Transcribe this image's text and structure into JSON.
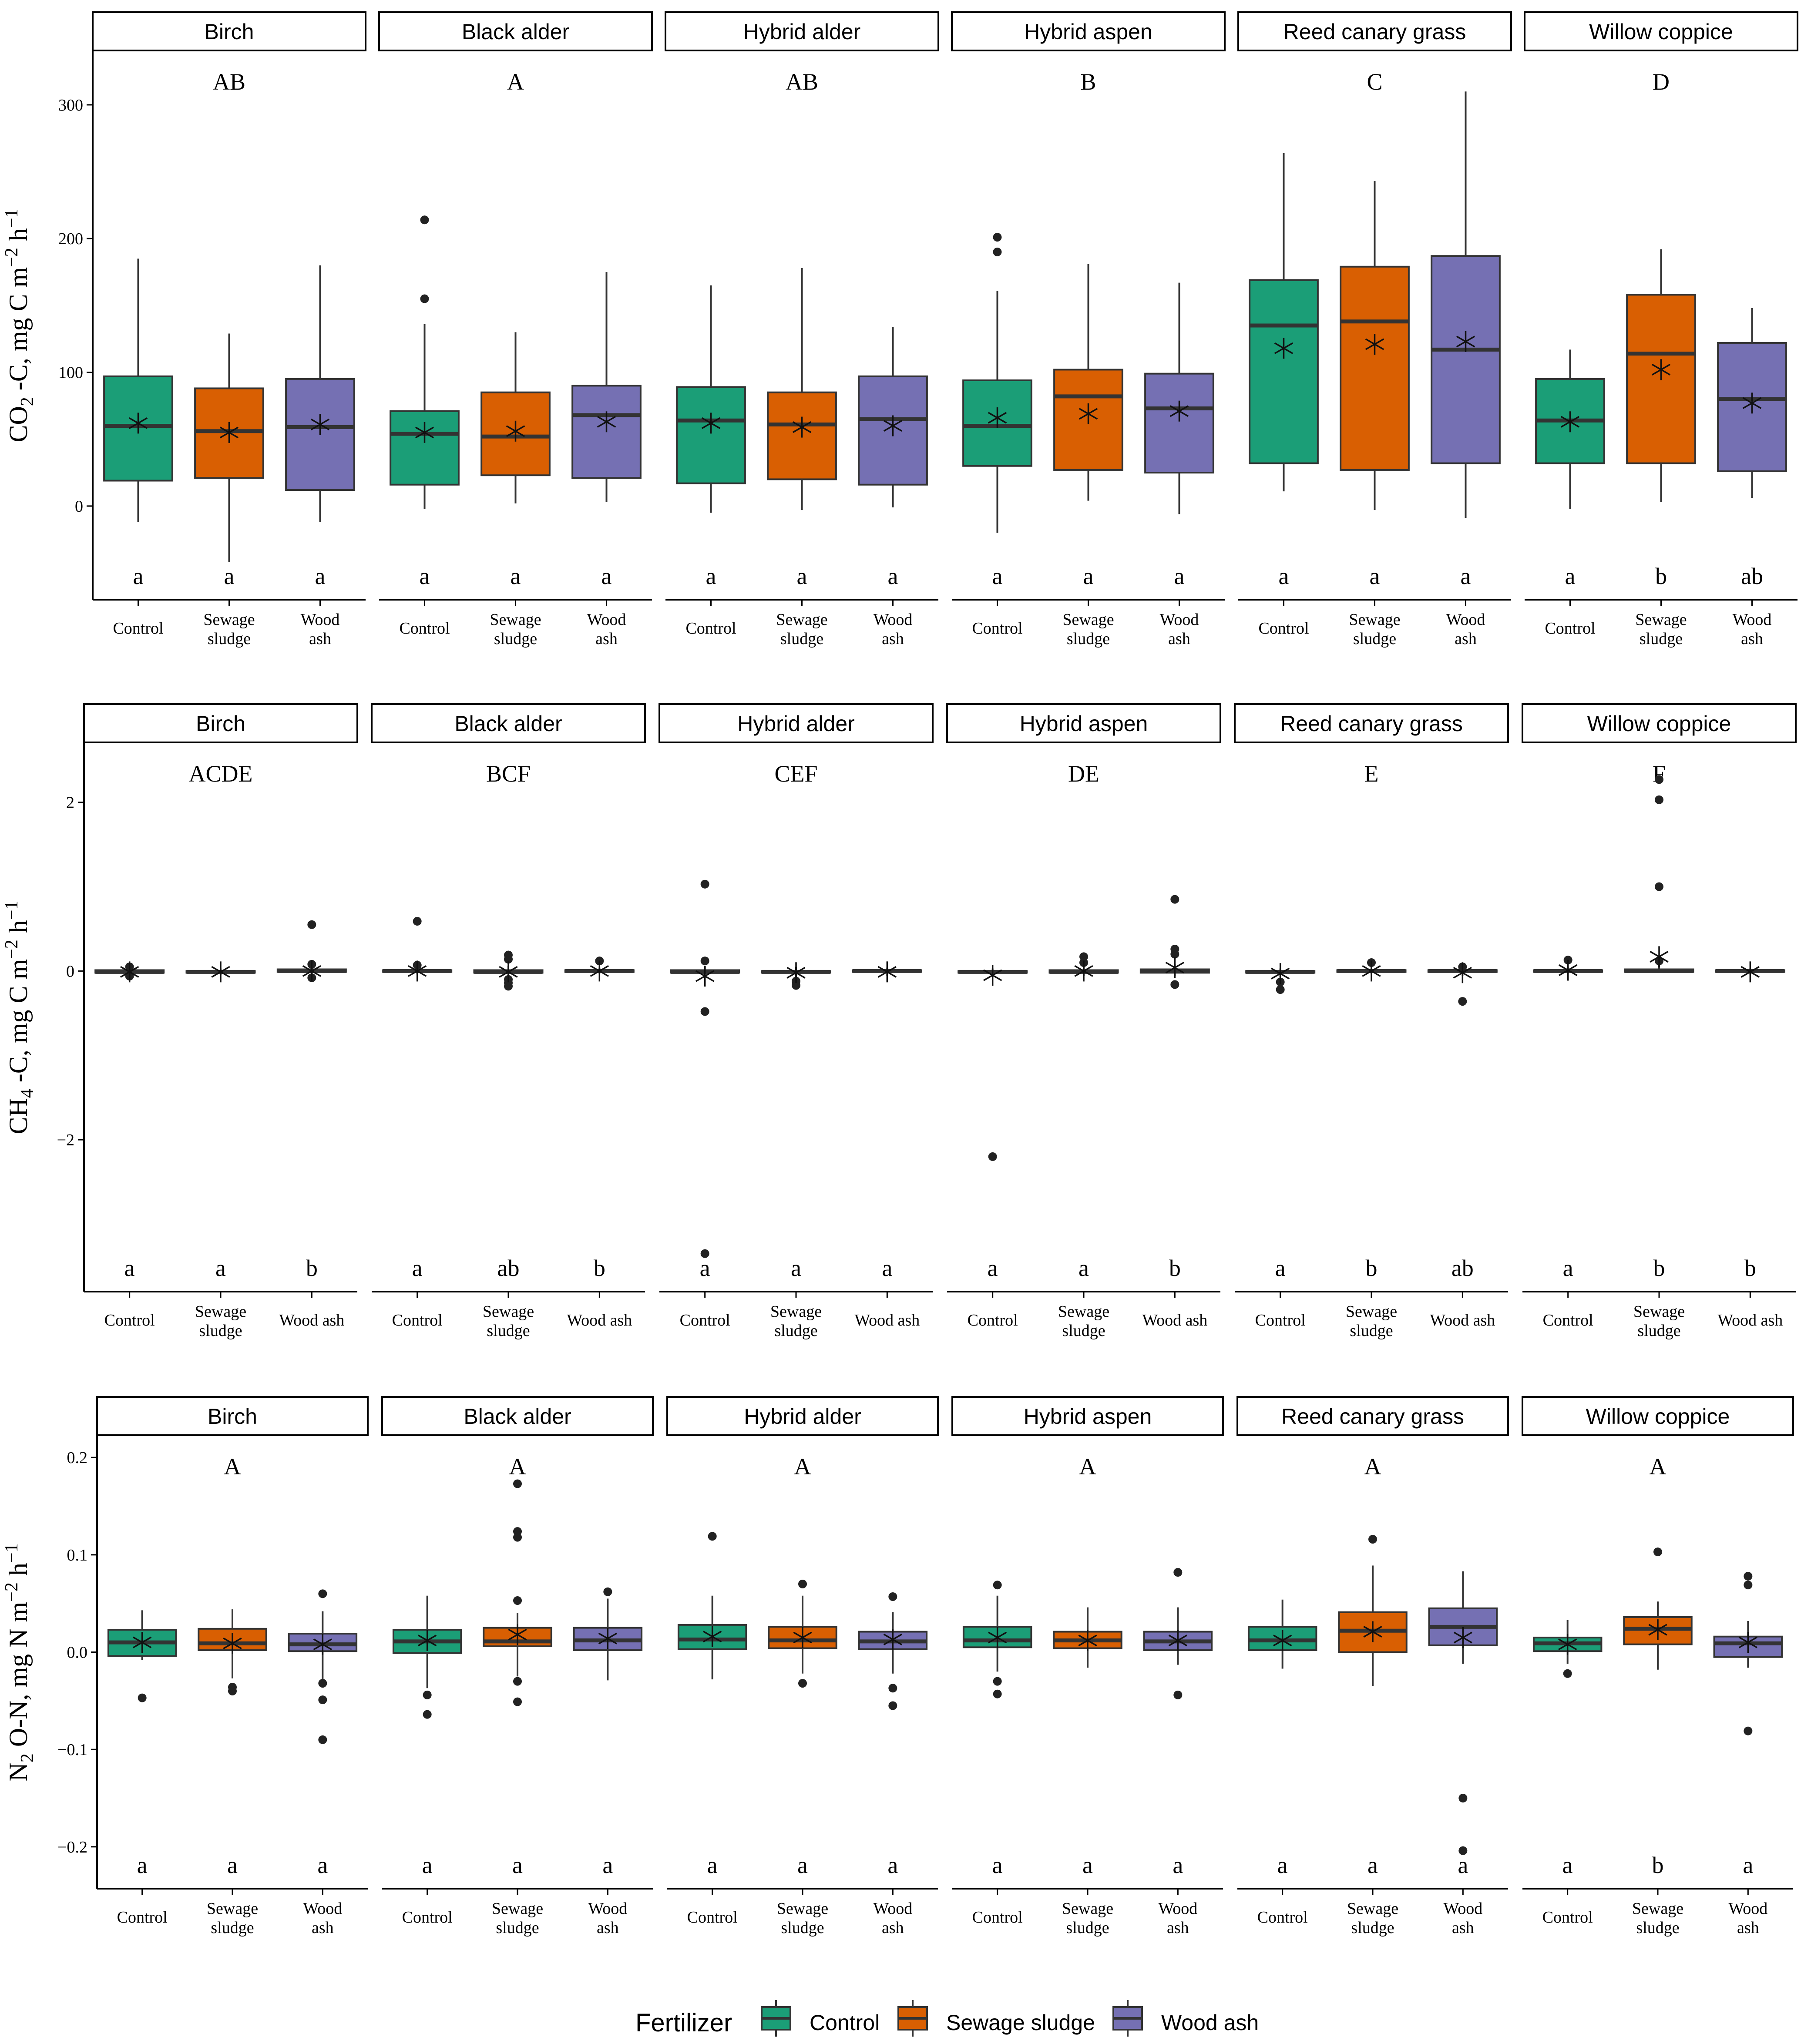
{
  "legend": {
    "title": "Fertilizer",
    "entries": [
      {
        "label": "Control",
        "color": "#1b9e77"
      },
      {
        "label": "Sewage sludge",
        "color": "#d95f02"
      },
      {
        "label": "Wood ash",
        "color": "#7570b3"
      }
    ]
  },
  "chart_data": [
    {
      "type": "box",
      "ylabel": {
        "main": "CO",
        "sub1": "2",
        "mid": " -C, mg C m",
        "sup1": "−2",
        "mid2": " h",
        "sup2": "−1"
      },
      "ylim": [
        -70,
        340
      ],
      "yticks": [
        0,
        100,
        200,
        300
      ],
      "ytick_labels": [
        "0",
        "100",
        "200",
        "300"
      ],
      "xtick_lines": [
        [
          "Control"
        ],
        [
          "Sewage",
          "sludge"
        ],
        [
          "Wood",
          "ash"
        ]
      ],
      "panels": [
        {
          "name": "Birch",
          "group": "AB",
          "letters": [
            "a",
            "a",
            "a"
          ],
          "boxes": [
            {
              "lw": -12,
              "q1": 19,
              "med": 60,
              "q3": 97,
              "uw": 185,
              "mean": 62,
              "outliers": []
            },
            {
              "lw": -42,
              "q1": 21,
              "med": 56,
              "q3": 88,
              "uw": 129,
              "mean": 55,
              "outliers": []
            },
            {
              "lw": -12,
              "q1": 12,
              "med": 59,
              "q3": 95,
              "uw": 180,
              "mean": 61,
              "outliers": []
            }
          ]
        },
        {
          "name": "Black alder",
          "group": "A",
          "letters": [
            "a",
            "a",
            "a"
          ],
          "boxes": [
            {
              "lw": -2,
              "q1": 16,
              "med": 54,
              "q3": 71,
              "uw": 136,
              "mean": 55,
              "outliers": [
                155,
                214
              ]
            },
            {
              "lw": 2,
              "q1": 23,
              "med": 52,
              "q3": 85,
              "uw": 130,
              "mean": 56,
              "outliers": []
            },
            {
              "lw": 3,
              "q1": 21,
              "med": 68,
              "q3": 90,
              "uw": 175,
              "mean": 63,
              "outliers": []
            }
          ]
        },
        {
          "name": "Hybrid alder",
          "group": "AB",
          "letters": [
            "a",
            "a",
            "a"
          ],
          "boxes": [
            {
              "lw": -5,
              "q1": 17,
              "med": 64,
              "q3": 89,
              "uw": 165,
              "mean": 62,
              "outliers": []
            },
            {
              "lw": -3,
              "q1": 20,
              "med": 61,
              "q3": 85,
              "uw": 178,
              "mean": 59,
              "outliers": []
            },
            {
              "lw": -1,
              "q1": 16,
              "med": 65,
              "q3": 97,
              "uw": 134,
              "mean": 60,
              "outliers": []
            }
          ]
        },
        {
          "name": "Hybrid aspen",
          "group": "B",
          "letters": [
            "a",
            "a",
            "a"
          ],
          "boxes": [
            {
              "lw": -20,
              "q1": 30,
              "med": 60,
              "q3": 94,
              "uw": 161,
              "mean": 66,
              "outliers": [
                190,
                201
              ]
            },
            {
              "lw": 4,
              "q1": 27,
              "med": 82,
              "q3": 102,
              "uw": 181,
              "mean": 69,
              "outliers": []
            },
            {
              "lw": -6,
              "q1": 25,
              "med": 73,
              "q3": 99,
              "uw": 167,
              "mean": 71,
              "outliers": []
            }
          ]
        },
        {
          "name": "Reed canary grass",
          "group": "C",
          "letters": [
            "a",
            "a",
            "a"
          ],
          "boxes": [
            {
              "lw": 11,
              "q1": 32,
              "med": 135,
              "q3": 169,
              "uw": 264,
              "mean": 118,
              "outliers": []
            },
            {
              "lw": -3,
              "q1": 27,
              "med": 138,
              "q3": 179,
              "uw": 243,
              "mean": 121,
              "outliers": []
            },
            {
              "lw": -9,
              "q1": 32,
              "med": 117,
              "q3": 187,
              "uw": 310,
              "mean": 123,
              "outliers": []
            }
          ]
        },
        {
          "name": "Willow coppice",
          "group": "D",
          "letters": [
            "a",
            "b",
            "ab"
          ],
          "boxes": [
            {
              "lw": -2,
              "q1": 32,
              "med": 64,
              "q3": 95,
              "uw": 117,
              "mean": 63,
              "outliers": []
            },
            {
              "lw": 3,
              "q1": 32,
              "med": 114,
              "q3": 158,
              "uw": 192,
              "mean": 102,
              "outliers": []
            },
            {
              "lw": 6,
              "q1": 26,
              "med": 80,
              "q3": 122,
              "uw": 148,
              "mean": 77,
              "outliers": []
            }
          ]
        }
      ]
    },
    {
      "type": "box",
      "ylabel": {
        "main": "CH",
        "sub1": "4",
        "mid": " -C, mg C m",
        "sup1": "−2",
        "mid2": " h",
        "sup2": "−1"
      },
      "ylim": [
        -3.8,
        2.7
      ],
      "yticks": [
        -2,
        0,
        2
      ],
      "ytick_labels": [
        "−2",
        "0",
        "2"
      ],
      "xtick_lines": [
        [
          "Control"
        ],
        [
          "Sewage",
          "sludge"
        ],
        [
          "Wood ash"
        ]
      ],
      "panels": [
        {
          "name": "Birch",
          "group": "ACDE",
          "letters": [
            "a",
            "a",
            "b"
          ],
          "boxes": [
            {
              "lw": -0.05,
              "q1": -0.02,
              "med": -0.01,
              "q3": 0.01,
              "uw": 0.04,
              "mean": -0.01,
              "outliers": [
                0.05,
                -0.06
              ]
            },
            {
              "lw": -0.05,
              "q1": -0.02,
              "med": -0.01,
              "q3": 0.0,
              "uw": 0.03,
              "mean": -0.01,
              "outliers": []
            },
            {
              "lw": -0.05,
              "q1": -0.01,
              "med": 0.0,
              "q3": 0.02,
              "uw": 0.05,
              "mean": 0.0,
              "outliers": [
                0.55,
                0.08,
                -0.08
              ]
            }
          ]
        },
        {
          "name": "Black alder",
          "group": "BCF",
          "letters": [
            "a",
            "ab",
            "b"
          ],
          "boxes": [
            {
              "lw": -0.04,
              "q1": -0.01,
              "med": 0.0,
              "q3": 0.01,
              "uw": 0.04,
              "mean": 0.0,
              "outliers": [
                0.59,
                0.07
              ]
            },
            {
              "lw": -0.08,
              "q1": -0.02,
              "med": -0.01,
              "q3": 0.01,
              "uw": 0.06,
              "mean": -0.01,
              "outliers": [
                0.19,
                0.14,
                -0.1,
                -0.14,
                -0.18
              ]
            },
            {
              "lw": -0.03,
              "q1": -0.01,
              "med": 0.0,
              "q3": 0.01,
              "uw": 0.04,
              "mean": 0.0,
              "outliers": [
                0.12
              ]
            }
          ]
        },
        {
          "name": "Hybrid alder",
          "group": "CEF",
          "letters": [
            "a",
            "a",
            "a"
          ],
          "boxes": [
            {
              "lw": -0.08,
              "q1": -0.02,
              "med": -0.01,
              "q3": 0.01,
              "uw": 0.06,
              "mean": -0.06,
              "outliers": [
                1.03,
                0.12,
                -0.48,
                -3.35
              ]
            },
            {
              "lw": -0.08,
              "q1": -0.02,
              "med": -0.01,
              "q3": 0.0,
              "uw": 0.05,
              "mean": -0.02,
              "outliers": [
                -0.12,
                -0.17
              ]
            },
            {
              "lw": -0.06,
              "q1": -0.01,
              "med": 0.0,
              "q3": 0.01,
              "uw": 0.04,
              "mean": -0.01,
              "outliers": []
            }
          ]
        },
        {
          "name": "Hybrid aspen",
          "group": "DE",
          "letters": [
            "a",
            "a",
            "b"
          ],
          "boxes": [
            {
              "lw": -0.06,
              "q1": -0.02,
              "med": -0.01,
              "q3": 0.0,
              "uw": 0.03,
              "mean": -0.05,
              "outliers": [
                -2.2
              ]
            },
            {
              "lw": -0.06,
              "q1": -0.02,
              "med": -0.01,
              "q3": 0.01,
              "uw": 0.06,
              "mean": 0.0,
              "outliers": [
                0.17,
                0.1
              ]
            },
            {
              "lw": -0.06,
              "q1": -0.02,
              "med": 0.0,
              "q3": 0.02,
              "uw": 0.08,
              "mean": 0.04,
              "outliers": [
                0.85,
                0.26,
                0.2,
                -0.16
              ]
            }
          ]
        },
        {
          "name": "Reed canary grass",
          "group": "E",
          "letters": [
            "a",
            "b",
            "ab"
          ],
          "boxes": [
            {
              "lw": -0.08,
              "q1": -0.02,
              "med": -0.01,
              "q3": 0.0,
              "uw": 0.03,
              "mean": -0.03,
              "outliers": [
                -0.13,
                -0.22
              ]
            },
            {
              "lw": -0.04,
              "q1": -0.01,
              "med": 0.0,
              "q3": 0.01,
              "uw": 0.05,
              "mean": 0.0,
              "outliers": [
                0.1
              ]
            },
            {
              "lw": -0.06,
              "q1": -0.01,
              "med": 0.0,
              "q3": 0.01,
              "uw": 0.04,
              "mean": -0.02,
              "outliers": [
                0.05,
                -0.36
              ]
            }
          ]
        },
        {
          "name": "Willow coppice",
          "group": "F",
          "letters": [
            "a",
            "b",
            "b"
          ],
          "boxes": [
            {
              "lw": -0.03,
              "q1": -0.01,
              "med": 0.0,
              "q3": 0.01,
              "uw": 0.05,
              "mean": 0.01,
              "outliers": [
                0.13
              ]
            },
            {
              "lw": -0.02,
              "q1": -0.01,
              "med": 0.0,
              "q3": 0.02,
              "uw": 0.08,
              "mean": 0.17,
              "outliers": [
                2.27,
                2.03,
                1.0,
                0.12
              ]
            },
            {
              "lw": -0.04,
              "q1": -0.01,
              "med": 0.0,
              "q3": 0.01,
              "uw": 0.03,
              "mean": -0.01,
              "outliers": []
            }
          ]
        }
      ]
    },
    {
      "type": "box",
      "ylabel": {
        "main": "N",
        "sub1": "2",
        "mid": " O-N, mg N m",
        "sup1": "−2",
        "mid2": " h",
        "sup2": "−1"
      },
      "ylim": [
        -0.243,
        0.222
      ],
      "yticks": [
        -0.2,
        -0.1,
        0.0,
        0.1,
        0.2
      ],
      "ytick_labels": [
        "−0.2",
        "−0.1",
        "0.0",
        "0.1",
        "0.2"
      ],
      "xtick_lines": [
        [
          "Control"
        ],
        [
          "Sewage",
          "sludge"
        ],
        [
          "Wood",
          "ash"
        ]
      ],
      "panels": [
        {
          "name": "Birch",
          "group": "A",
          "letters": [
            "a",
            "a",
            "a"
          ],
          "boxes": [
            {
              "lw": -0.008,
              "q1": -0.004,
              "med": 0.01,
              "q3": 0.023,
              "uw": 0.043,
              "mean": 0.01,
              "outliers": [
                -0.047
              ]
            },
            {
              "lw": -0.027,
              "q1": 0.002,
              "med": 0.009,
              "q3": 0.024,
              "uw": 0.044,
              "mean": 0.009,
              "outliers": [
                -0.036,
                -0.04
              ]
            },
            {
              "lw": -0.028,
              "q1": 0.001,
              "med": 0.008,
              "q3": 0.019,
              "uw": 0.042,
              "mean": 0.008,
              "outliers": [
                0.06,
                -0.032,
                -0.049,
                -0.09
              ]
            }
          ]
        },
        {
          "name": "Black alder",
          "group": "A",
          "letters": [
            "a",
            "a",
            "a"
          ],
          "boxes": [
            {
              "lw": -0.037,
              "q1": -0.001,
              "med": 0.011,
              "q3": 0.023,
              "uw": 0.058,
              "mean": 0.012,
              "outliers": [
                -0.044,
                -0.064
              ]
            },
            {
              "lw": -0.025,
              "q1": 0.006,
              "med": 0.011,
              "q3": 0.025,
              "uw": 0.04,
              "mean": 0.018,
              "outliers": [
                0.173,
                0.124,
                0.118,
                0.053,
                -0.03,
                -0.051
              ]
            },
            {
              "lw": -0.029,
              "q1": 0.002,
              "med": 0.012,
              "q3": 0.025,
              "uw": 0.055,
              "mean": 0.014,
              "outliers": [
                0.062
              ]
            }
          ]
        },
        {
          "name": "Hybrid alder",
          "group": "A",
          "letters": [
            "a",
            "a",
            "a"
          ],
          "boxes": [
            {
              "lw": -0.028,
              "q1": 0.003,
              "med": 0.013,
              "q3": 0.028,
              "uw": 0.058,
              "mean": 0.016,
              "outliers": [
                0.119
              ]
            },
            {
              "lw": -0.022,
              "q1": 0.004,
              "med": 0.012,
              "q3": 0.026,
              "uw": 0.058,
              "mean": 0.015,
              "outliers": [
                0.07,
                -0.032
              ]
            },
            {
              "lw": -0.022,
              "q1": 0.003,
              "med": 0.011,
              "q3": 0.021,
              "uw": 0.041,
              "mean": 0.013,
              "outliers": [
                0.057,
                -0.037,
                -0.055
              ]
            }
          ]
        },
        {
          "name": "Hybrid aspen",
          "group": "A",
          "letters": [
            "a",
            "a",
            "a"
          ],
          "boxes": [
            {
              "lw": -0.02,
              "q1": 0.005,
              "med": 0.012,
              "q3": 0.026,
              "uw": 0.058,
              "mean": 0.015,
              "outliers": [
                0.069,
                -0.03,
                -0.043
              ]
            },
            {
              "lw": -0.016,
              "q1": 0.004,
              "med": 0.012,
              "q3": 0.021,
              "uw": 0.046,
              "mean": 0.012,
              "outliers": []
            },
            {
              "lw": -0.013,
              "q1": 0.002,
              "med": 0.011,
              "q3": 0.021,
              "uw": 0.046,
              "mean": 0.012,
              "outliers": [
                0.082,
                -0.044
              ]
            }
          ]
        },
        {
          "name": "Reed canary grass",
          "group": "A",
          "letters": [
            "a",
            "a",
            "a"
          ],
          "boxes": [
            {
              "lw": -0.017,
              "q1": 0.002,
              "med": 0.012,
              "q3": 0.026,
              "uw": 0.054,
              "mean": 0.012,
              "outliers": []
            },
            {
              "lw": -0.035,
              "q1": 0.0,
              "med": 0.022,
              "q3": 0.041,
              "uw": 0.089,
              "mean": 0.021,
              "outliers": [
                0.116
              ]
            },
            {
              "lw": -0.012,
              "q1": 0.007,
              "med": 0.026,
              "q3": 0.045,
              "uw": 0.083,
              "mean": 0.015,
              "outliers": [
                -0.15,
                -0.204
              ]
            }
          ]
        },
        {
          "name": "Willow coppice",
          "group": "A",
          "letters": [
            "a",
            "b",
            "a"
          ],
          "boxes": [
            {
              "lw": -0.012,
              "q1": 0.001,
              "med": 0.009,
              "q3": 0.015,
              "uw": 0.033,
              "mean": 0.008,
              "outliers": [
                -0.022
              ]
            },
            {
              "lw": -0.018,
              "q1": 0.008,
              "med": 0.024,
              "q3": 0.036,
              "uw": 0.052,
              "mean": 0.023,
              "outliers": [
                0.103
              ]
            },
            {
              "lw": -0.016,
              "q1": -0.005,
              "med": 0.009,
              "q3": 0.016,
              "uw": 0.032,
              "mean": 0.01,
              "outliers": [
                0.078,
                0.069,
                -0.081
              ]
            }
          ]
        }
      ]
    }
  ]
}
